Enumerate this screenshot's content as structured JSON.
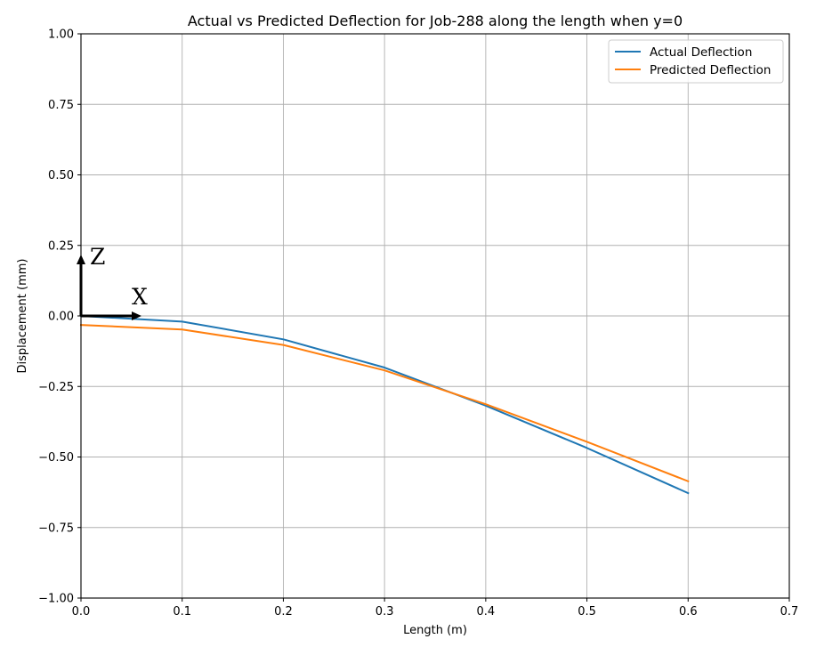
{
  "chart_data": {
    "type": "line",
    "title": "Actual vs Predicted Deflection for Job-288 along the length when y=0",
    "xlabel": "Length (m)",
    "ylabel": "Displacement (mm)",
    "xlim": [
      0.0,
      0.7
    ],
    "ylim": [
      -1.0,
      1.0
    ],
    "xticks": [
      0.0,
      0.1,
      0.2,
      0.3,
      0.4,
      0.5,
      0.6,
      0.7
    ],
    "xtick_labels": [
      "0.0",
      "0.1",
      "0.2",
      "0.3",
      "0.4",
      "0.5",
      "0.6",
      "0.7"
    ],
    "yticks": [
      1.0,
      0.75,
      0.5,
      0.25,
      0.0,
      -0.25,
      -0.5,
      -0.75,
      -1.0
    ],
    "ytick_labels": [
      "1.00",
      "0.75",
      "0.50",
      "0.25",
      "0.00",
      "−0.25",
      "−0.50",
      "−0.75",
      "−1.00"
    ],
    "grid": true,
    "legend_position": "top-right",
    "x": [
      0.0,
      0.1,
      0.2,
      0.3,
      0.4,
      0.5,
      0.6
    ],
    "series": [
      {
        "name": "Actual Deflection",
        "color": "#1f77b4",
        "values": [
          0.0,
          -0.02,
          -0.083,
          -0.183,
          -0.318,
          -0.468,
          -0.628
        ]
      },
      {
        "name": "Predicted Deflection",
        "color": "#ff7f0e",
        "values": [
          -0.032,
          -0.048,
          -0.103,
          -0.193,
          -0.313,
          -0.446,
          -0.586
        ]
      }
    ],
    "annotations": {
      "z_label": "Z",
      "x_label": "X"
    }
  }
}
